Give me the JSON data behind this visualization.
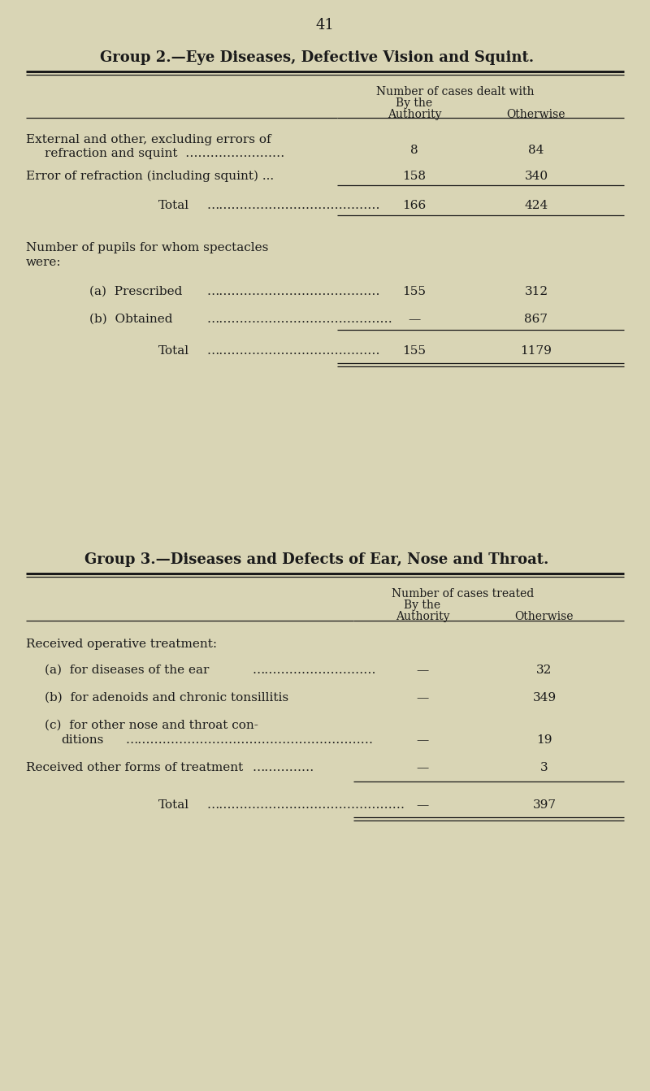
{
  "bg_color": "#d9d5b5",
  "text_color": "#1a1a1a",
  "page_number": "41",
  "group2_title": "Group 2.—Eye Diseases, Defective Vision and Squint.",
  "group3_title": "Group 3.—Diseases and Defects of Ear, Nose and Throat."
}
